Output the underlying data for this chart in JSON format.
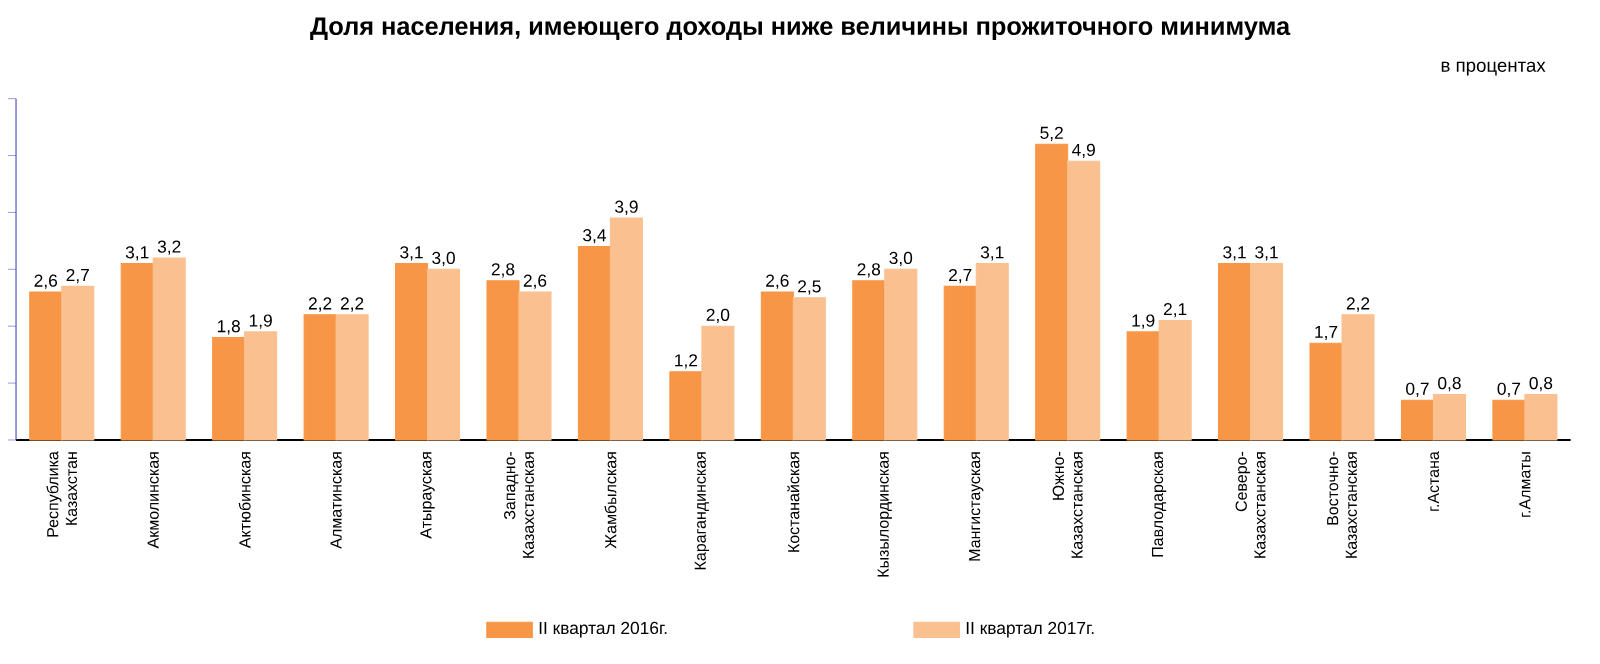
{
  "chart_data": {
    "type": "bar",
    "title": "Доля населения, имеющего доходы ниже величины  прожиточного минимума",
    "annotations": [
      "в процентах"
    ],
    "categories": [
      "Республика Казахстан",
      "Акмолинская",
      "Актюбинская",
      "Алматинская",
      "Атырауская",
      "Западно-Казахстанская",
      "Жамбылская",
      "Карагандинская",
      "Костанайская",
      "Кызылординская",
      "Мангистауская",
      "Южно-Казахстанская",
      "Павлодарская",
      "Северо-Казахстанская",
      "Восточно-Казахстанская",
      "г.Астана",
      "г.Алматы"
    ],
    "series": [
      {
        "name": "II квартал 2016г.",
        "color": "#f79646",
        "values": [
          2.6,
          3.1,
          1.8,
          2.2,
          3.1,
          2.8,
          3.4,
          1.2,
          2.6,
          2.8,
          2.7,
          5.2,
          1.9,
          3.1,
          1.7,
          0.7,
          0.7
        ],
        "value_labels": [
          "2,6",
          "3,1",
          "1,8",
          "2,2",
          "3,1",
          "2,8",
          "3,4",
          "1,2",
          "2,6",
          "2,8",
          "2,7",
          "5,2",
          "1,9",
          "3,1",
          "1,7",
          "0,7",
          "0,7"
        ]
      },
      {
        "name": "II квартал 2017г.",
        "color": "#fac090",
        "values": [
          2.7,
          3.2,
          1.9,
          2.2,
          3.0,
          2.6,
          3.9,
          2.0,
          2.5,
          3.0,
          3.1,
          4.9,
          2.1,
          3.1,
          2.2,
          0.8,
          0.8
        ],
        "value_labels": [
          "2,7",
          "3,2",
          "1,9",
          "2,2",
          "3,0",
          "2,6",
          "3,9",
          "2,0",
          "2,5",
          "3,0",
          "3,1",
          "4,9",
          "2,1",
          "3,1",
          "2,2",
          "0,8",
          "0,8"
        ]
      }
    ],
    "ylim": [
      0,
      6
    ],
    "yticks": [
      {
        "value": 0,
        "label": null
      },
      {
        "value": 1,
        "label": null
      },
      {
        "value": 2,
        "label": null
      },
      {
        "value": 3,
        "label": null
      },
      {
        "value": 4,
        "label": null
      },
      {
        "value": 5,
        "label": null
      },
      {
        "value": 6,
        "label": null
      }
    ],
    "tick_labels": "x",
    "legend": "bottom",
    "grid": false
  }
}
